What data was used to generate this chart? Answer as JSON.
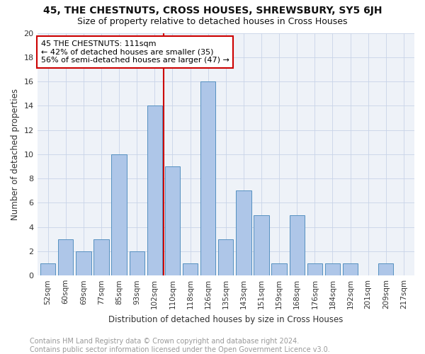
{
  "title": "45, THE CHESTNUTS, CROSS HOUSES, SHREWSBURY, SY5 6JH",
  "subtitle": "Size of property relative to detached houses in Cross Houses",
  "xlabel": "Distribution of detached houses by size in Cross Houses",
  "ylabel": "Number of detached properties",
  "bar_labels": [
    "52sqm",
    "60sqm",
    "69sqm",
    "77sqm",
    "85sqm",
    "93sqm",
    "102sqm",
    "110sqm",
    "118sqm",
    "126sqm",
    "135sqm",
    "143sqm",
    "151sqm",
    "159sqm",
    "168sqm",
    "176sqm",
    "184sqm",
    "192sqm",
    "201sqm",
    "209sqm",
    "217sqm"
  ],
  "bar_values": [
    1,
    3,
    2,
    3,
    10,
    2,
    14,
    9,
    1,
    16,
    3,
    7,
    5,
    1,
    5,
    1,
    1,
    1,
    0,
    1,
    0
  ],
  "bar_color": "#aec6e8",
  "bar_edgecolor": "#5590c0",
  "vline_color": "#cc0000",
  "vline_x_index": 6.5,
  "annotation_text": "45 THE CHESTNUTS: 111sqm\n← 42% of detached houses are smaller (35)\n56% of semi-detached houses are larger (47) →",
  "annotation_box_edgecolor": "#cc0000",
  "annotation_box_facecolor": "#ffffff",
  "ylim": [
    0,
    20
  ],
  "yticks": [
    0,
    2,
    4,
    6,
    8,
    10,
    12,
    14,
    16,
    18,
    20
  ],
  "footer_text": "Contains HM Land Registry data © Crown copyright and database right 2024.\nContains public sector information licensed under the Open Government Licence v3.0.",
  "title_fontsize": 10,
  "subtitle_fontsize": 9,
  "xlabel_fontsize": 8.5,
  "ylabel_fontsize": 8.5,
  "footer_fontsize": 7,
  "annot_fontsize": 8
}
